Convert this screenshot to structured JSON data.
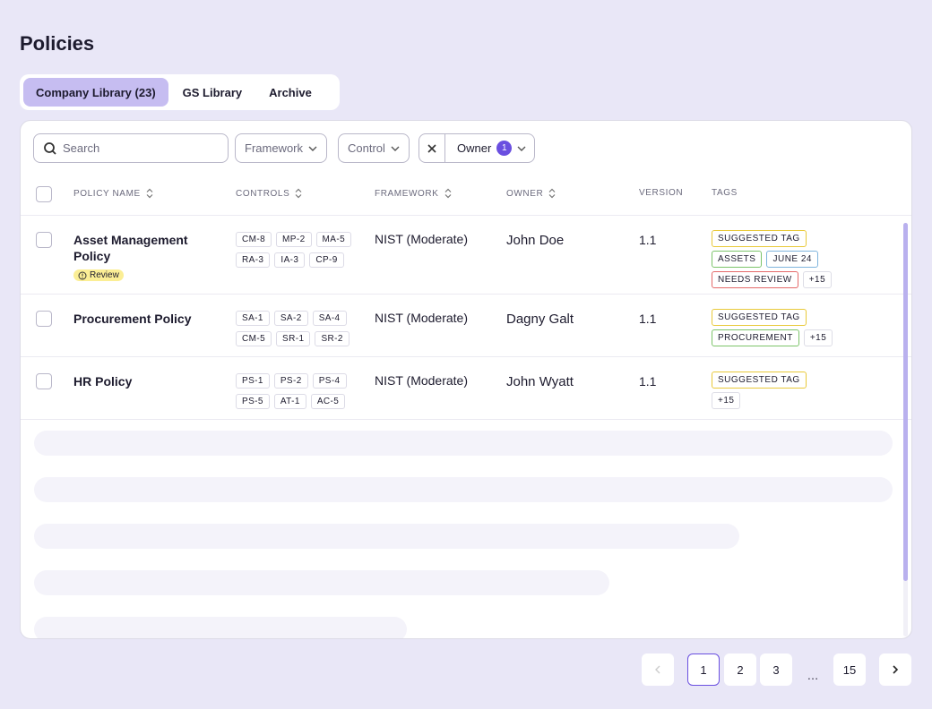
{
  "header": {
    "title": "Policies"
  },
  "tabs": [
    "Company Library (23)",
    "GS Library",
    "Archive"
  ],
  "active_tab": 0,
  "filters": {
    "search_placeholder": "Search",
    "framework": "Framework",
    "control": "Control",
    "owner": "Owner",
    "owner_count": 1
  },
  "table": {
    "columns": [
      {
        "label": "POLICY NAME",
        "sortable": true
      },
      {
        "label": "CONTROLS",
        "sortable": true
      },
      {
        "label": "FRAMEWORK",
        "sortable": true
      },
      {
        "label": "OWNER",
        "sortable": true
      },
      {
        "label": "VERSION",
        "sortable": false
      },
      {
        "label": "TAGS",
        "sortable": false
      }
    ],
    "rows": [
      {
        "name": "Asset Management Policy",
        "badge": "Review",
        "controls": [
          "CM-8",
          "MP-2",
          "MA-5",
          "RA-3",
          "IA-3",
          "CP-9"
        ],
        "framework": "NIST (Moderate)",
        "owner": "John Doe",
        "version": "1.1",
        "tags": [
          {
            "label": "SUGGESTED TAG",
            "color": "#e9c93a"
          },
          {
            "label": "ASSETS",
            "color": "#7cc46a"
          },
          {
            "label": "JUNE 24",
            "color": "#7fb4dd"
          },
          {
            "label": "NEEDS REVIEW",
            "color": "#e46a6a"
          },
          {
            "label": "+15",
            "color": "#dddde6"
          }
        ]
      },
      {
        "name": "Procurement Policy",
        "controls": [
          "SA-1",
          "SA-2",
          "SA-4",
          "CM-5",
          "SR-1",
          "SR-2"
        ],
        "framework": "NIST (Moderate)",
        "owner": "Dagny Galt",
        "version": "1.1",
        "tags": [
          {
            "label": "SUGGESTED TAG",
            "color": "#e9c93a"
          },
          {
            "label": "PROCUREMENT",
            "color": "#7cc46a"
          },
          {
            "label": "+15",
            "color": "#dddde6"
          }
        ]
      },
      {
        "name": "HR Policy",
        "controls": [
          "PS-1",
          "PS-2",
          "PS-4",
          "PS-5",
          "AT-1",
          "AC-5"
        ],
        "framework": "NIST (Moderate)",
        "owner": "John Wyatt",
        "version": "1.1",
        "tags": [
          {
            "label": "SUGGESTED TAG",
            "color": "#e9c93a"
          },
          {
            "label": "+15",
            "color": "#dddde6"
          }
        ]
      }
    ]
  },
  "pagination": {
    "pages": [
      1,
      2,
      3,
      "…",
      15
    ],
    "current": 1
  }
}
